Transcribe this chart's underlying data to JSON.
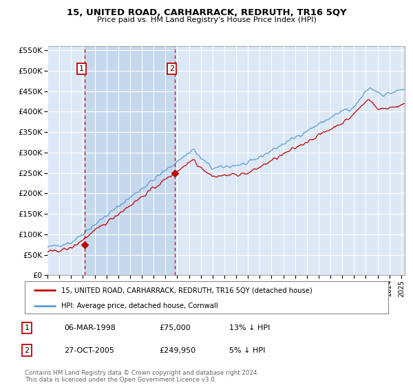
{
  "title": "15, UNITED ROAD, CARHARRACK, REDRUTH, TR16 5QY",
  "subtitle": "Price paid vs. HM Land Registry's House Price Index (HPI)",
  "ylim": [
    0,
    560000
  ],
  "yticks": [
    0,
    50000,
    100000,
    150000,
    200000,
    250000,
    300000,
    350000,
    400000,
    450000,
    500000,
    550000
  ],
  "xlim_start": 1995.0,
  "xlim_end": 2025.3,
  "background_color": "#dce8f5",
  "grid_color": "#ffffff",
  "hpi_color": "#5b9bd5",
  "price_color": "#c00000",
  "sale1_x": 1998.18,
  "sale1_y": 75000,
  "sale1_label": "1",
  "sale2_x": 2005.82,
  "sale2_y": 249950,
  "sale2_label": "2",
  "shade_color": "#c5d8ee",
  "legend_line1": "15, UNITED ROAD, CARHARRACK, REDRUTH, TR16 5QY (detached house)",
  "legend_line2": "HPI: Average price, detached house, Cornwall",
  "table_rows": [
    [
      "1",
      "06-MAR-1998",
      "£75,000",
      "13% ↓ HPI"
    ],
    [
      "2",
      "27-OCT-2005",
      "£249,950",
      "5% ↓ HPI"
    ]
  ],
  "footer": "Contains HM Land Registry data © Crown copyright and database right 2024.\nThis data is licensed under the Open Government Licence v3.0.",
  "vline1_x": 1998.18,
  "vline2_x": 2005.82
}
